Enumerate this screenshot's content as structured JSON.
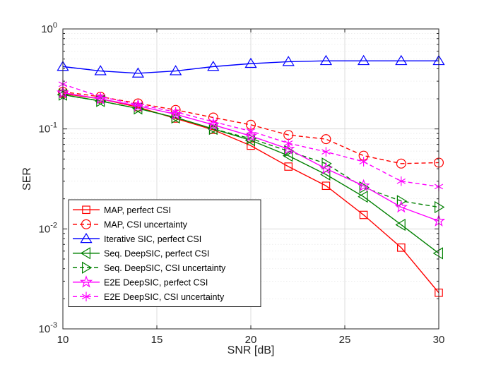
{
  "chart_data": {
    "type": "line",
    "title": "",
    "xlabel": "SNR [dB]",
    "ylabel": "SER",
    "xlim": [
      10,
      30
    ],
    "ylim": [
      0.001,
      1
    ],
    "yscale": "log",
    "grid": true,
    "legend_position": "bottom-left",
    "x_ticks": [
      10,
      15,
      20,
      25,
      30
    ],
    "y_ticks": [
      {
        "value": 1,
        "base": "10",
        "exp": "0"
      },
      {
        "value": 0.1,
        "base": "10",
        "exp": "-1"
      },
      {
        "value": 0.01,
        "base": "10",
        "exp": "-2"
      },
      {
        "value": 0.001,
        "base": "10",
        "exp": "-3"
      }
    ],
    "x": [
      10,
      12,
      14,
      16,
      18,
      20,
      22,
      24,
      26,
      28,
      30
    ],
    "series": [
      {
        "name": "MAP, perfect CSI",
        "color": "#ff0000",
        "dash": "solid",
        "marker": "square",
        "values": [
          0.225,
          0.2,
          0.165,
          0.127,
          0.098,
          0.068,
          0.042,
          0.027,
          0.0138,
          0.0065,
          0.0023
        ]
      },
      {
        "name": "MAP, CSI uncertainty",
        "color": "#ff0000",
        "dash": "dashed",
        "marker": "circle",
        "values": [
          0.235,
          0.21,
          0.18,
          0.155,
          0.13,
          0.11,
          0.087,
          0.079,
          0.054,
          0.045,
          0.046
        ]
      },
      {
        "name": "Iterative SIC, perfect CSI",
        "color": "#0000ff",
        "dash": "solid",
        "marker": "triangle-up",
        "values": [
          0.42,
          0.38,
          0.36,
          0.38,
          0.42,
          0.45,
          0.47,
          0.48,
          0.48,
          0.48,
          0.48
        ]
      },
      {
        "name": "Seq. DeepSIC, perfect CSI",
        "color": "#008000",
        "dash": "solid",
        "marker": "triangle-left",
        "values": [
          0.22,
          0.19,
          0.16,
          0.13,
          0.1,
          0.077,
          0.054,
          0.035,
          0.021,
          0.011,
          0.0057
        ]
      },
      {
        "name": "Seq. DeepSIC, CSI uncertainty",
        "color": "#008000",
        "dash": "dashed",
        "marker": "triangle-right",
        "values": [
          0.22,
          0.19,
          0.16,
          0.13,
          0.1,
          0.08,
          0.06,
          0.045,
          0.026,
          0.019,
          0.0165
        ]
      },
      {
        "name": "E2E DeepSIC, perfect CSI",
        "color": "#ff00ff",
        "dash": "solid",
        "marker": "star",
        "values": [
          0.23,
          0.2,
          0.17,
          0.14,
          0.11,
          0.085,
          0.063,
          0.04,
          0.027,
          0.0165,
          0.012
        ]
      },
      {
        "name": "E2E DeepSIC, CSI uncertainty",
        "color": "#ff00ff",
        "dash": "dashed",
        "marker": "asterisk",
        "values": [
          0.28,
          0.21,
          0.175,
          0.148,
          0.118,
          0.095,
          0.072,
          0.059,
          0.047,
          0.03,
          0.0265
        ]
      }
    ]
  }
}
